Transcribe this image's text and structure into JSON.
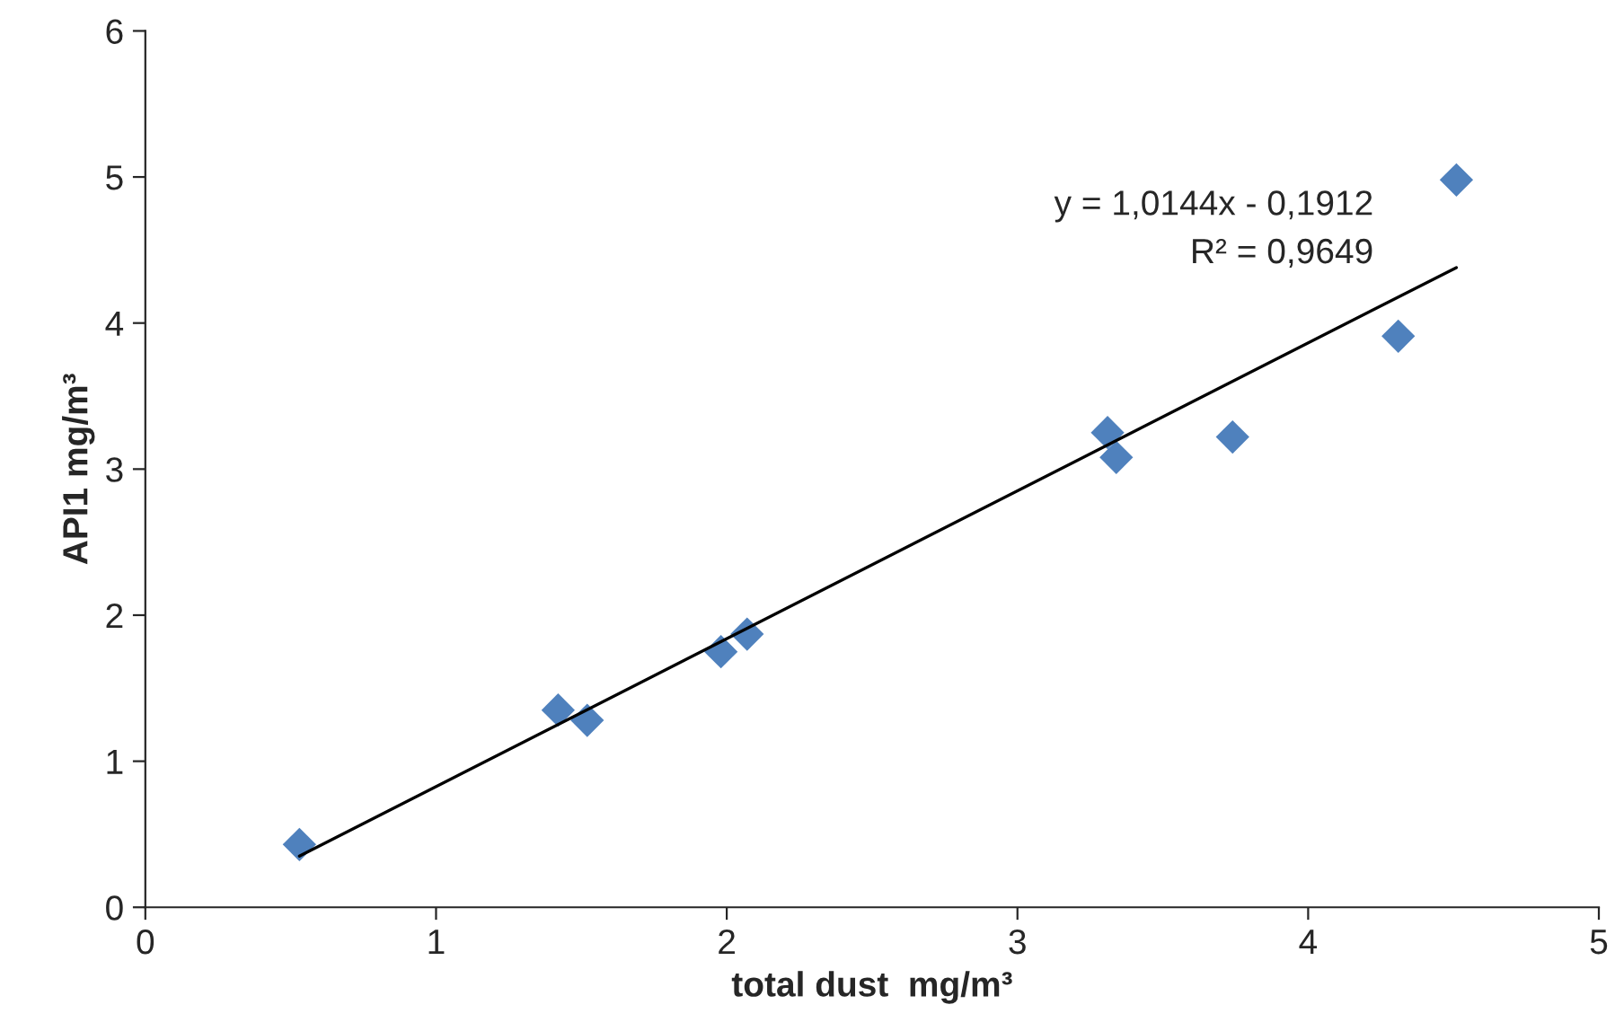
{
  "chart_data": {
    "type": "scatter",
    "xlabel": "total dust  mg/m³",
    "ylabel": "API1 mg/m³",
    "xlim": [
      0,
      5
    ],
    "xticks": [
      0,
      1,
      2,
      3,
      4,
      5
    ],
    "ylim": [
      0,
      6
    ],
    "yticks": [
      0,
      1,
      2,
      3,
      4,
      5,
      6
    ],
    "grid": false,
    "marker": "diamond",
    "series": [
      {
        "color": "#4f81bd",
        "x": [
          0.53,
          1.42,
          1.52,
          1.98,
          2.07,
          3.31,
          3.34,
          3.74,
          4.31,
          4.51
        ],
        "values": [
          0.43,
          1.35,
          1.28,
          1.75,
          1.87,
          3.25,
          3.08,
          3.22,
          3.91,
          4.98
        ]
      },
      {
        "type": "line",
        "color": "#000000",
        "marker": "none",
        "x": [
          0.53,
          4.51
        ],
        "values": [
          0.35,
          4.38
        ]
      }
    ],
    "annotations": [
      "y = 1,0144x - 0,1912",
      "R² = 0,9649"
    ]
  }
}
